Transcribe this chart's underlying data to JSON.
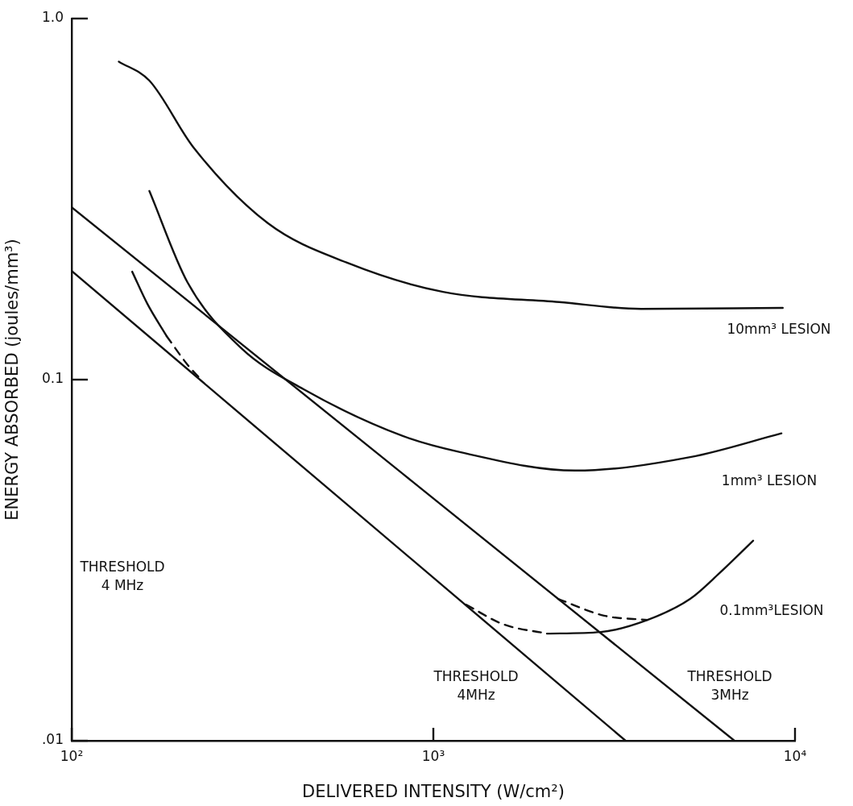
{
  "chart_data": {
    "type": "line",
    "xlabel": "DELIVERED INTENSITY (W/cm²)",
    "ylabel": "ENERGY ABSORBED (joules/mm³)",
    "log": "xy",
    "xlim": [
      100,
      10000
    ],
    "ylim": [
      0.01,
      1
    ],
    "xticks": [
      {
        "value": 100,
        "label": "10²"
      },
      {
        "value": 1000,
        "label": "10³"
      },
      {
        "value": 10000,
        "label": "10⁴"
      }
    ],
    "yticks": [
      {
        "value": 0.01,
        "label": ".01"
      },
      0.1,
      {
        "value": 1,
        "label": "1.0"
      }
    ],
    "legend": false,
    "marker": "none",
    "series": [
      {
        "color": "#111111",
        "line_style": "solid",
        "x": [
          135,
          164,
          217,
          349,
          583,
          1064,
          2228,
          3750,
          9250
        ],
        "values": [
          0.76,
          0.673,
          0.44,
          0.271,
          0.21,
          0.175,
          0.164,
          0.157,
          0.158
        ]
      },
      {
        "color": "#111111",
        "line_style": "solid",
        "x": [
          164,
          209,
          295,
          438,
          823,
          1184,
          2466,
          5130,
          9170
        ],
        "values": [
          0.333,
          0.186,
          0.122,
          0.094,
          0.0698,
          0.063,
          0.056,
          0.061,
          0.071
        ]
      },
      {
        "color": "#111111",
        "line_style": "solid",
        "x": [
          147,
          162,
          183
        ],
        "values": [
          0.199,
          0.162,
          0.132
        ]
      },
      {
        "color": "#111111",
        "line_style": "dashed",
        "x": [
          183,
          209,
          228
        ],
        "values": [
          0.132,
          0.11,
          0.1
        ]
      },
      {
        "color": "#111111",
        "line_style": "dashed",
        "x": [
          1233,
          1563,
          2061
        ],
        "values": [
          0.0238,
          0.021,
          0.0198
        ]
      },
      {
        "color": "#111111",
        "line_style": "solid",
        "x": [
          2061,
          2905,
          3910,
          5130,
          6180,
          7660
        ],
        "values": [
          0.0198,
          0.02,
          0.0216,
          0.0247,
          0.0291,
          0.0358
        ]
      },
      {
        "color": "#111111",
        "line_style": "dashed",
        "x": [
          2213,
          2965,
          3910
        ],
        "values": [
          0.0247,
          0.0222,
          0.0216
        ]
      },
      {
        "color": "#111111",
        "line_style": "solid",
        "x": [
          100,
          3400
        ],
        "values": [
          0.2,
          0.01
        ]
      },
      {
        "color": "#111111",
        "line_style": "solid",
        "x": [
          100,
          6800
        ],
        "values": [
          0.3,
          0.01
        ]
      }
    ],
    "annotations": [
      "10mm³ LESION",
      "1mm³ LESION",
      "0.1mm³LESION",
      "THRESHOLD\n4 MHz",
      "THRESHOLD\n4MHz",
      "THRESHOLD\n3MHz"
    ]
  }
}
